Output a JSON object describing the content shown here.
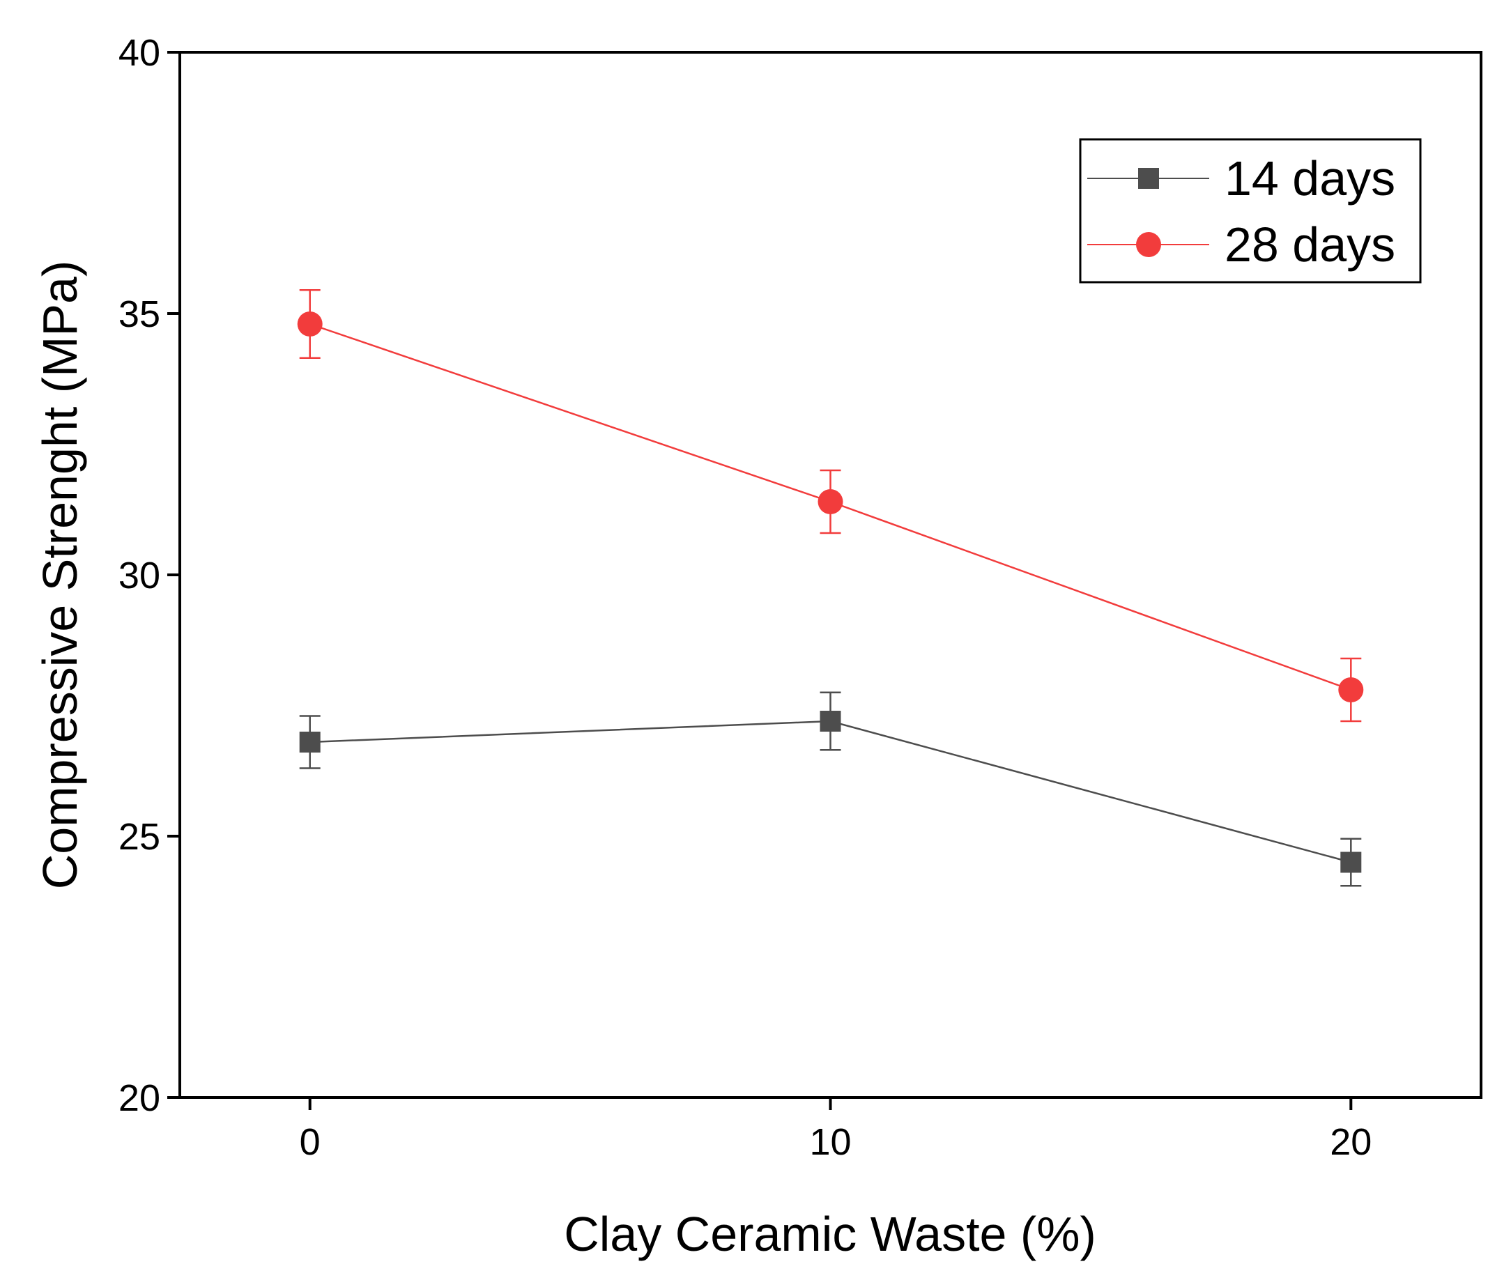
{
  "chart_data": {
    "type": "line",
    "title": "",
    "xlabel": "Clay Ceramic Waste (%)",
    "ylabel": "Compressive Strenght (MPa)",
    "x": [
      0,
      10,
      20
    ],
    "xlim": [
      -2.5,
      22.5
    ],
    "ylim": [
      20,
      40
    ],
    "xticks": [
      0,
      10,
      20
    ],
    "xtick_labels": [
      "0",
      "10",
      "20"
    ],
    "yticks": [
      20,
      25,
      30,
      35,
      40
    ],
    "ytick_labels": [
      "20",
      "25",
      "30",
      "35",
      "40"
    ],
    "grid": false,
    "legend_position": "top-right",
    "series": [
      {
        "name": "14 days",
        "color": "#4d4d4d",
        "marker": "square",
        "values": [
          26.8,
          27.2,
          24.5
        ],
        "errors": [
          0.5,
          0.55,
          0.45
        ]
      },
      {
        "name": "28 days",
        "color": "#f23c3c",
        "marker": "circle",
        "values": [
          34.8,
          31.4,
          27.8
        ],
        "errors": [
          0.65,
          0.6,
          0.6
        ]
      }
    ]
  }
}
